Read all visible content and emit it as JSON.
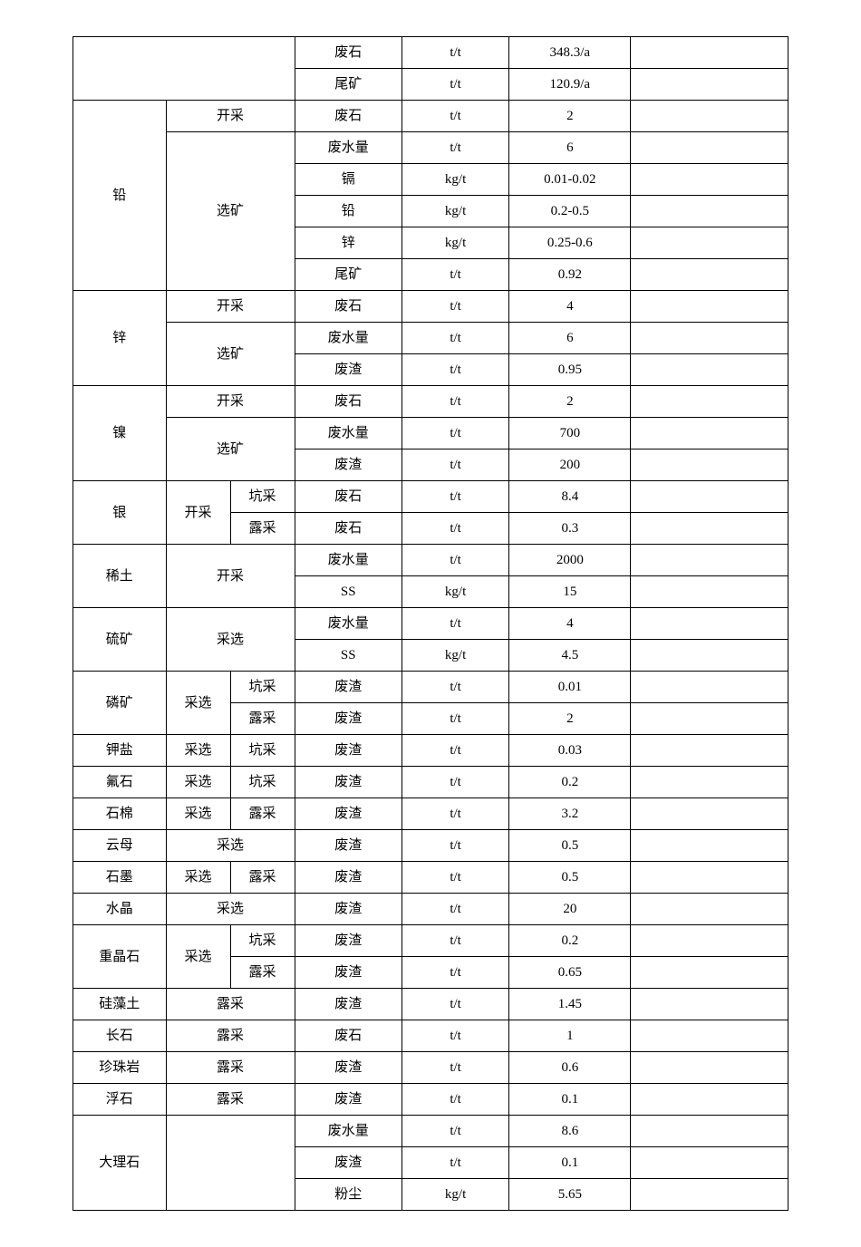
{
  "table": {
    "colors": {
      "border": "#000000",
      "background": "#ffffff",
      "text": "#000000"
    },
    "font_size": 15,
    "rows": [
      {
        "c0": "",
        "c1": "",
        "c2": "",
        "c3": "废石",
        "c4": "t/t",
        "c5": "348.3/a",
        "c6": ""
      },
      {
        "c0": "",
        "c1": "",
        "c2": "",
        "c3": "尾矿",
        "c4": "t/t",
        "c5": "120.9/a",
        "c6": ""
      },
      {
        "c0": "铅",
        "c1": "开采",
        "c2": "",
        "c3": "废石",
        "c4": "t/t",
        "c5": "2",
        "c6": ""
      },
      {
        "c0": "",
        "c1": "选矿",
        "c2": "",
        "c3": "废水量",
        "c4": "t/t",
        "c5": "6",
        "c6": ""
      },
      {
        "c0": "",
        "c1": "",
        "c2": "",
        "c3": "镉",
        "c4": "kg/t",
        "c5": "0.01-0.02",
        "c6": ""
      },
      {
        "c0": "",
        "c1": "",
        "c2": "",
        "c3": "铅",
        "c4": "kg/t",
        "c5": "0.2-0.5",
        "c6": ""
      },
      {
        "c0": "",
        "c1": "",
        "c2": "",
        "c3": "锌",
        "c4": "kg/t",
        "c5": "0.25-0.6",
        "c6": ""
      },
      {
        "c0": "",
        "c1": "",
        "c2": "",
        "c3": "尾矿",
        "c4": "t/t",
        "c5": "0.92",
        "c6": ""
      },
      {
        "c0": "锌",
        "c1": "开采",
        "c2": "",
        "c3": "废石",
        "c4": "t/t",
        "c5": "4",
        "c6": ""
      },
      {
        "c0": "",
        "c1": "选矿",
        "c2": "",
        "c3": "废水量",
        "c4": "t/t",
        "c5": "6",
        "c6": ""
      },
      {
        "c0": "",
        "c1": "",
        "c2": "",
        "c3": "废渣",
        "c4": "t/t",
        "c5": "0.95",
        "c6": ""
      },
      {
        "c0": "镍",
        "c1": "开采",
        "c2": "",
        "c3": "废石",
        "c4": "t/t",
        "c5": "2",
        "c6": ""
      },
      {
        "c0": "",
        "c1": "选矿",
        "c2": "",
        "c3": "废水量",
        "c4": "t/t",
        "c5": "700",
        "c6": ""
      },
      {
        "c0": "",
        "c1": "",
        "c2": "",
        "c3": "废渣",
        "c4": "t/t",
        "c5": "200",
        "c6": ""
      },
      {
        "c0": "银",
        "c1": "开采",
        "c2": "坑采",
        "c3": "废石",
        "c4": "t/t",
        "c5": "8.4",
        "c6": ""
      },
      {
        "c0": "",
        "c1": "",
        "c2": "露采",
        "c3": "废石",
        "c4": "t/t",
        "c5": "0.3",
        "c6": ""
      },
      {
        "c0": "稀土",
        "c1": "开采",
        "c2": "",
        "c3": "废水量",
        "c4": "t/t",
        "c5": "2000",
        "c6": ""
      },
      {
        "c0": "",
        "c1": "",
        "c2": "",
        "c3": "SS",
        "c4": "kg/t",
        "c5": "15",
        "c6": ""
      },
      {
        "c0": "硫矿",
        "c1": "采选",
        "c2": "",
        "c3": "废水量",
        "c4": "t/t",
        "c5": "4",
        "c6": ""
      },
      {
        "c0": "",
        "c1": "",
        "c2": "",
        "c3": "SS",
        "c4": "kg/t",
        "c5": "4.5",
        "c6": ""
      },
      {
        "c0": "磷矿",
        "c1": "采选",
        "c2": "坑采",
        "c3": "废渣",
        "c4": "t/t",
        "c5": "0.01",
        "c6": ""
      },
      {
        "c0": "",
        "c1": "",
        "c2": "露采",
        "c3": "废渣",
        "c4": "t/t",
        "c5": "2",
        "c6": ""
      },
      {
        "c0": "钾盐",
        "c1": "采选",
        "c2": "坑采",
        "c3": "废渣",
        "c4": "t/t",
        "c5": "0.03",
        "c6": ""
      },
      {
        "c0": "氟石",
        "c1": "采选",
        "c2": "坑采",
        "c3": "废渣",
        "c4": "t/t",
        "c5": "0.2",
        "c6": ""
      },
      {
        "c0": "石棉",
        "c1": "采选",
        "c2": "露采",
        "c3": "废渣",
        "c4": "t/t",
        "c5": "3.2",
        "c6": ""
      },
      {
        "c0": "云母",
        "c1": "采选",
        "c2": "",
        "c3": "废渣",
        "c4": "t/t",
        "c5": "0.5",
        "c6": ""
      },
      {
        "c0": "石墨",
        "c1": "采选",
        "c2": "露采",
        "c3": "废渣",
        "c4": "t/t",
        "c5": "0.5",
        "c6": ""
      },
      {
        "c0": "水晶",
        "c1": "采选",
        "c2": "",
        "c3": "废渣",
        "c4": "t/t",
        "c5": "20",
        "c6": ""
      },
      {
        "c0": "重晶石",
        "c1": "采选",
        "c2": "坑采",
        "c3": "废渣",
        "c4": "t/t",
        "c5": "0.2",
        "c6": ""
      },
      {
        "c0": "",
        "c1": "",
        "c2": "露采",
        "c3": "废渣",
        "c4": "t/t",
        "c5": "0.65",
        "c6": ""
      },
      {
        "c0": "硅藻土",
        "c1": "露采",
        "c2": "",
        "c3": "废渣",
        "c4": "t/t",
        "c5": "1.45",
        "c6": ""
      },
      {
        "c0": "长石",
        "c1": "露采",
        "c2": "",
        "c3": "废石",
        "c4": "t/t",
        "c5": "1",
        "c6": ""
      },
      {
        "c0": "珍珠岩",
        "c1": "露采",
        "c2": "",
        "c3": "废渣",
        "c4": "t/t",
        "c5": "0.6",
        "c6": ""
      },
      {
        "c0": "浮石",
        "c1": "露采",
        "c2": "",
        "c3": "废渣",
        "c4": "t/t",
        "c5": "0.1",
        "c6": ""
      },
      {
        "c0": "大理石",
        "c1": "",
        "c2": "",
        "c3": "废水量",
        "c4": "t/t",
        "c5": "8.6",
        "c6": ""
      },
      {
        "c0": "",
        "c1": "",
        "c2": "",
        "c3": "废渣",
        "c4": "t/t",
        "c5": "0.1",
        "c6": ""
      },
      {
        "c0": "",
        "c1": "",
        "c2": "",
        "c3": "粉尘",
        "c4": "kg/t",
        "c5": "5.65",
        "c6": ""
      }
    ]
  }
}
